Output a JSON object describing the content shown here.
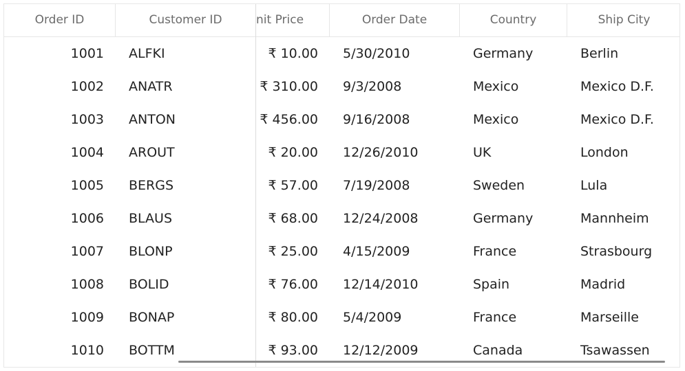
{
  "columns": {
    "order_id": "Order ID",
    "customer_id": "Customer ID",
    "unit_price": "nit Price",
    "order_date": "Order Date",
    "country": "Country",
    "ship_city": "Ship City"
  },
  "rows": [
    {
      "order_id": "1001",
      "customer_id": "ALFKI",
      "unit_price": "₹ 10.00",
      "order_date": "5/30/2010",
      "country": "Germany",
      "ship_city": "Berlin"
    },
    {
      "order_id": "1002",
      "customer_id": "ANATR",
      "unit_price": "₹ 310.00",
      "order_date": "9/3/2008",
      "country": "Mexico",
      "ship_city": "Mexico D.F."
    },
    {
      "order_id": "1003",
      "customer_id": "ANTON",
      "unit_price": "₹ 456.00",
      "order_date": "9/16/2008",
      "country": "Mexico",
      "ship_city": "Mexico D.F."
    },
    {
      "order_id": "1004",
      "customer_id": "AROUT",
      "unit_price": "₹ 20.00",
      "order_date": "12/26/2010",
      "country": "UK",
      "ship_city": "London"
    },
    {
      "order_id": "1005",
      "customer_id": "BERGS",
      "unit_price": "₹ 57.00",
      "order_date": "7/19/2008",
      "country": "Sweden",
      "ship_city": "Lula"
    },
    {
      "order_id": "1006",
      "customer_id": "BLAUS",
      "unit_price": "₹ 68.00",
      "order_date": "12/24/2008",
      "country": "Germany",
      "ship_city": "Mannheim"
    },
    {
      "order_id": "1007",
      "customer_id": "BLONP",
      "unit_price": "₹ 25.00",
      "order_date": "4/15/2009",
      "country": "France",
      "ship_city": "Strasbourg"
    },
    {
      "order_id": "1008",
      "customer_id": "BOLID",
      "unit_price": "₹ 76.00",
      "order_date": "12/14/2010",
      "country": "Spain",
      "ship_city": "Madrid"
    },
    {
      "order_id": "1009",
      "customer_id": "BONAP",
      "unit_price": "₹ 80.00",
      "order_date": "5/4/2009",
      "country": "France",
      "ship_city": "Marseille"
    },
    {
      "order_id": "1010",
      "customer_id": "BOTTM",
      "unit_price": "₹ 93.00",
      "order_date": "12/12/2009",
      "country": "Canada",
      "ship_city": "Tsawassen"
    }
  ]
}
